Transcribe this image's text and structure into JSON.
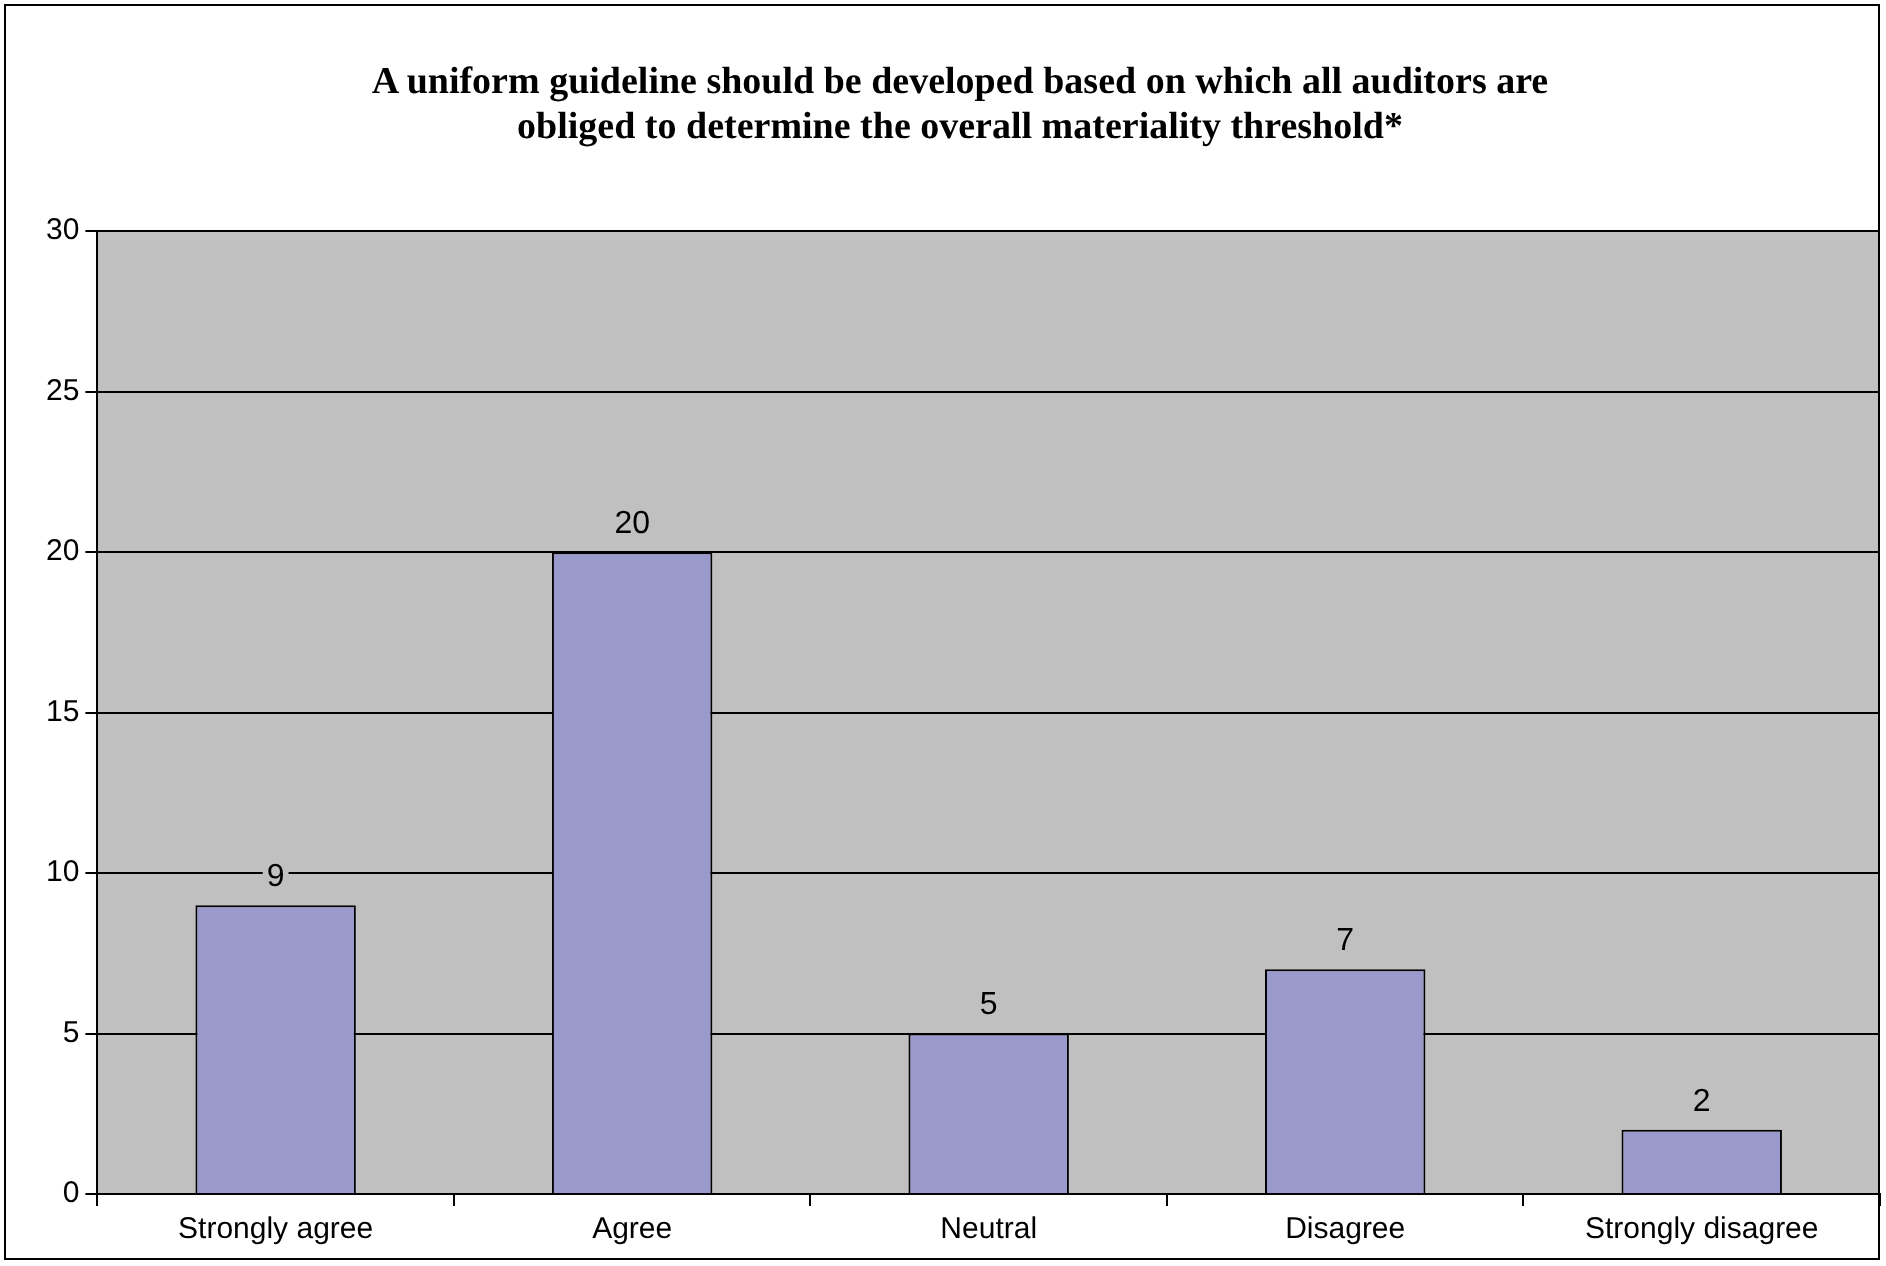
{
  "chart_data": {
    "type": "bar",
    "title": [
      "A uniform guideline should be developed based on which all auditors are",
      "obliged to determine the overall materiality threshold*"
    ],
    "categories": [
      "Strongly agree",
      "Agree",
      "Neutral",
      "Disagree",
      "Strongly disagree"
    ],
    "values": [
      9,
      20,
      5,
      7,
      2
    ],
    "color": "#9999cc",
    "ylim": [
      0,
      30
    ],
    "yticks": [
      0,
      5,
      10,
      15,
      20,
      25,
      30
    ],
    "grid": "y",
    "data_labels": true,
    "legend": false
  }
}
